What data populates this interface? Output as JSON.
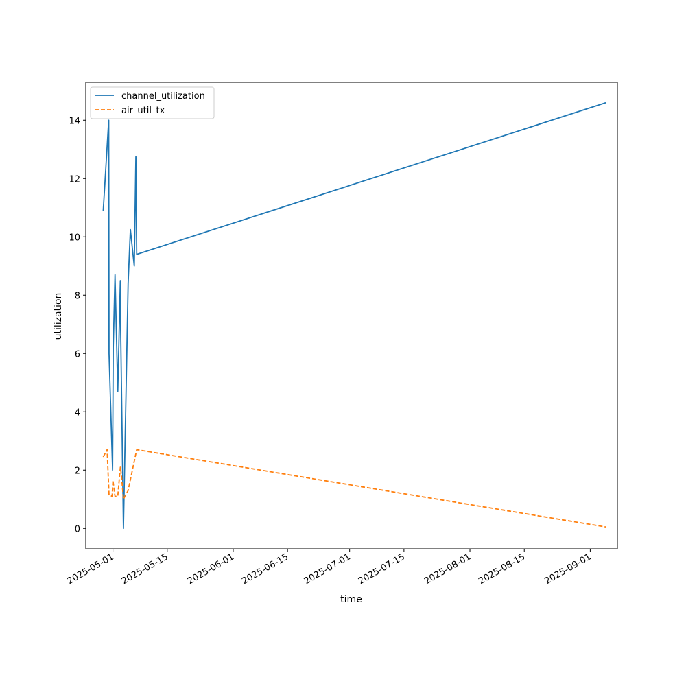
{
  "chart_data": {
    "type": "line",
    "title": "",
    "xlabel": "time",
    "ylabel": "utilization",
    "x_axis_type": "date",
    "xlim": [
      "2025-04-24",
      "2025-09-08"
    ],
    "ylim": [
      -0.7,
      15.3
    ],
    "x_ticks": [
      "2025-05-01",
      "2025-05-15",
      "2025-06-01",
      "2025-06-15",
      "2025-07-01",
      "2025-07-15",
      "2025-08-01",
      "2025-08-15",
      "2025-09-01"
    ],
    "y_ticks": [
      0,
      2,
      4,
      6,
      8,
      10,
      12,
      14
    ],
    "grid": false,
    "legend_position": "upper left",
    "series": [
      {
        "name": "channel_utilization",
        "color": "#1f77b4",
        "dash": "solid",
        "points": [
          [
            "2025-04-28T12:00",
            10.9
          ],
          [
            "2025-04-29T22:00",
            14.0
          ],
          [
            "2025-04-30T00:00",
            6.0
          ],
          [
            "2025-04-30T22:00",
            2.0
          ],
          [
            "2025-05-01T02:00",
            6.2
          ],
          [
            "2025-05-01T13:00",
            8.7
          ],
          [
            "2025-05-02T06:00",
            4.7
          ],
          [
            "2025-05-02T22:00",
            8.5
          ],
          [
            "2025-05-03T00:00",
            6.8
          ],
          [
            "2025-05-03T17:00",
            0.0
          ],
          [
            "2025-05-04T22:00",
            8.4
          ],
          [
            "2025-05-05T12:00",
            10.25
          ],
          [
            "2025-05-06T12:00",
            9.0
          ],
          [
            "2025-05-06T22:00",
            12.75
          ],
          [
            "2025-05-07T03:00",
            9.4
          ],
          [
            "2025-09-05T00:00",
            14.6
          ]
        ]
      },
      {
        "name": "air_util_tx",
        "color": "#ff7f0e",
        "dash": "dashed",
        "points": [
          [
            "2025-04-28T12:00",
            2.45
          ],
          [
            "2025-04-29T12:00",
            2.7
          ],
          [
            "2025-04-30T00:00",
            1.15
          ],
          [
            "2025-04-30T19:00",
            1.1
          ],
          [
            "2025-04-31T00:00",
            1.65
          ],
          [
            "2025-05-01T13:00",
            1.1
          ],
          [
            "2025-05-02T06:00",
            1.1
          ],
          [
            "2025-05-02T22:00",
            2.1
          ],
          [
            "2025-05-03T05:00",
            1.8
          ],
          [
            "2025-05-03T17:00",
            1.0
          ],
          [
            "2025-05-04T22:00",
            1.3
          ],
          [
            "2025-05-07T03:00",
            2.7
          ],
          [
            "2025-09-05T00:00",
            0.05
          ]
        ]
      }
    ]
  }
}
